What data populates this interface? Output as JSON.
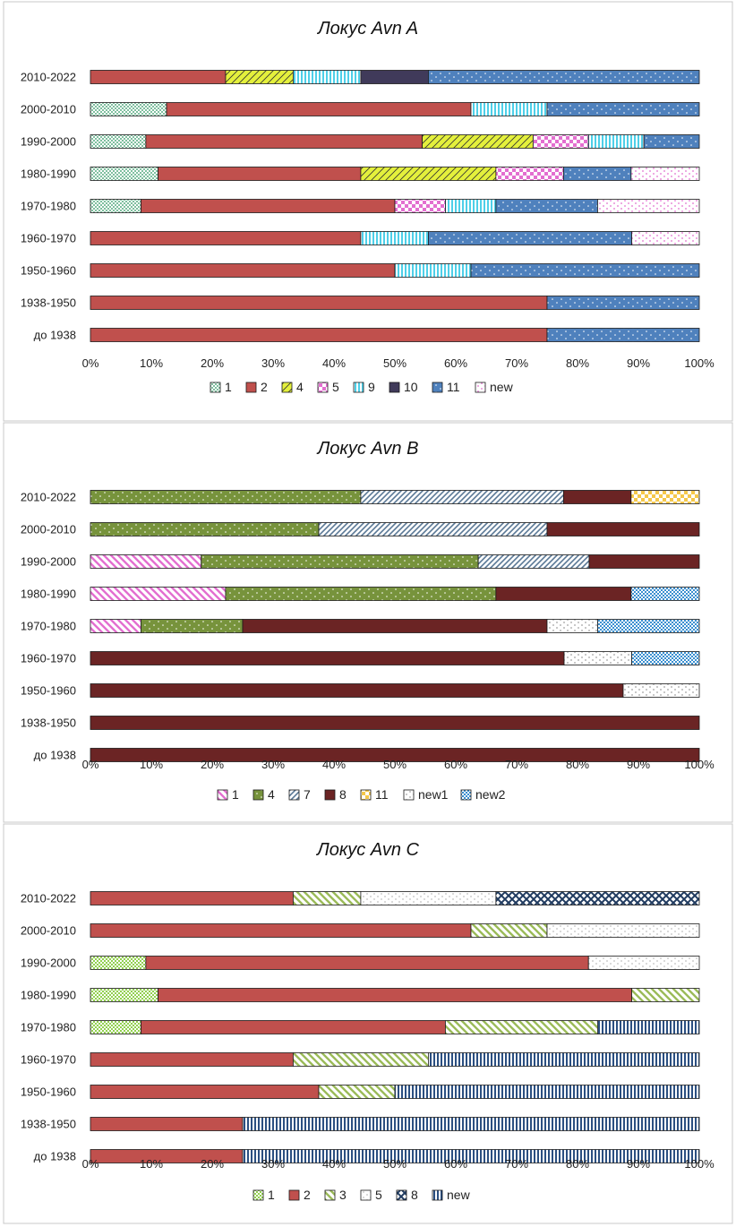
{
  "chart_data": [
    {
      "type": "bar",
      "orientation": "horizontal",
      "stacked": "percent",
      "title": "Локус Avn A",
      "categories": [
        "2010-2022",
        "2000-2010",
        "1990-2000",
        "1980-1990",
        "1970-1980",
        "1960-1970",
        "1950-1960",
        "1938-1950",
        "до 1938"
      ],
      "xlim": [
        0,
        100
      ],
      "xticks": [
        "0%",
        "10%",
        "20%",
        "30%",
        "40%",
        "50%",
        "60%",
        "70%",
        "80%",
        "90%",
        "100%"
      ],
      "legend_position": "bottom",
      "series": [
        {
          "name": "1",
          "color": "#7fbf9f",
          "pattern": "dots-dense",
          "values": [
            0,
            12.5,
            9.1,
            11.1,
            8.3,
            0,
            0,
            0,
            0
          ]
        },
        {
          "name": "2",
          "color": "#c0504d",
          "pattern": "solid",
          "values": [
            22.2,
            50,
            45.4,
            33.3,
            41.7,
            44.4,
            50,
            75,
            75
          ]
        },
        {
          "name": "4",
          "color": "#e4f03c",
          "pattern": "crosshatch",
          "values": [
            11.1,
            0,
            18.2,
            22.2,
            0,
            0,
            0,
            0,
            0
          ]
        },
        {
          "name": "5",
          "color": "#e36fd0",
          "pattern": "checker",
          "values": [
            0,
            0,
            9.1,
            11.1,
            8.3,
            0,
            0,
            0,
            0
          ]
        },
        {
          "name": "9",
          "color": "#4ecfe8",
          "pattern": "vlines",
          "values": [
            11.1,
            12.5,
            9.1,
            0,
            8.3,
            11.1,
            12.5,
            0,
            0
          ]
        },
        {
          "name": "10",
          "color": "#403a5a",
          "pattern": "solid",
          "values": [
            11.1,
            0,
            0,
            0,
            0,
            0,
            0,
            0,
            0
          ]
        },
        {
          "name": "11",
          "color": "#4f81bd",
          "pattern": "dots",
          "values": [
            44.5,
            25,
            9.1,
            11.1,
            16.7,
            33.4,
            37.5,
            25,
            25
          ]
        },
        {
          "name": "new",
          "color": "#e36fd0",
          "pattern": "dots-light",
          "values": [
            0,
            0,
            0,
            11.2,
            16.7,
            11.1,
            0,
            0,
            0
          ]
        }
      ]
    },
    {
      "type": "bar",
      "orientation": "horizontal",
      "stacked": "percent",
      "title": "Локус Avn B",
      "categories": [
        "2010-2022",
        "2000-2010",
        "1990-2000",
        "1980-1990",
        "1970-1980",
        "1960-1970",
        "1950-1960",
        "1938-1950",
        "до 1938"
      ],
      "xlim": [
        0,
        100
      ],
      "xticks": [
        "0%",
        "10%",
        "20%",
        "30%",
        "40%",
        "50%",
        "60%",
        "70%",
        "80%",
        "90%",
        "100%"
      ],
      "legend_position": "bottom",
      "series": [
        {
          "name": "1",
          "color": "#e36fd0",
          "pattern": "diag-wide",
          "values": [
            0,
            0,
            18.2,
            22.2,
            8.3,
            0,
            0,
            0,
            0
          ]
        },
        {
          "name": "4",
          "color": "#77933c",
          "pattern": "dots",
          "values": [
            44.4,
            37.5,
            45.5,
            44.4,
            16.7,
            0,
            0,
            0,
            0
          ]
        },
        {
          "name": "7",
          "color": "#5a7896",
          "pattern": "diag",
          "values": [
            33.3,
            37.5,
            18.2,
            0,
            0,
            0,
            0,
            0,
            0
          ]
        },
        {
          "name": "8",
          "color": "#6b2424",
          "pattern": "solid",
          "values": [
            11.1,
            25,
            18.1,
            22.2,
            50,
            77.8,
            87.5,
            100,
            100
          ]
        },
        {
          "name": "11",
          "color": "#f5c84a",
          "pattern": "checker",
          "values": [
            11.2,
            0,
            0,
            0,
            0,
            0,
            0,
            0,
            0
          ]
        },
        {
          "name": "new1",
          "color": "#a0a0a0",
          "pattern": "dots-light",
          "values": [
            0,
            0,
            0,
            0,
            8.3,
            11.1,
            12.5,
            0,
            0
          ]
        },
        {
          "name": "new2",
          "color": "#3a8fd0",
          "pattern": "dots-dense",
          "values": [
            0,
            0,
            0,
            11.2,
            16.7,
            11.1,
            0,
            0,
            0
          ]
        }
      ]
    },
    {
      "type": "bar",
      "orientation": "horizontal",
      "stacked": "percent",
      "title": "Локус Avn C",
      "categories": [
        "2010-2022",
        "2000-2010",
        "1990-2000",
        "1980-1990",
        "1970-1980",
        "1960-1970",
        "1950-1960",
        "1938-1950",
        "до 1938"
      ],
      "xlim": [
        0,
        100
      ],
      "xticks": [
        "0%",
        "10%",
        "20%",
        "30%",
        "40%",
        "50%",
        "60%",
        "70%",
        "80%",
        "90%",
        "100%"
      ],
      "legend_position": "bottom",
      "series": [
        {
          "name": "1",
          "color": "#92d050",
          "pattern": "dots-dense",
          "values": [
            0,
            0,
            9.1,
            11.1,
            8.3,
            0,
            0,
            0,
            0
          ]
        },
        {
          "name": "2",
          "color": "#c0504d",
          "pattern": "solid",
          "values": [
            33.3,
            62.5,
            72.7,
            77.8,
            50,
            33.3,
            37.5,
            25,
            25
          ]
        },
        {
          "name": "3",
          "color": "#9bbb59",
          "pattern": "diag-wide",
          "values": [
            11.1,
            12.5,
            0,
            11.1,
            25,
            22.2,
            12.5,
            0,
            0
          ]
        },
        {
          "name": "5",
          "color": "#bfbfbf",
          "pattern": "dots-light",
          "values": [
            22.2,
            25,
            18.2,
            0,
            0,
            0,
            0,
            0,
            0
          ]
        },
        {
          "name": "8",
          "color": "#1f3a5f",
          "pattern": "xgrid",
          "values": [
            33.4,
            0,
            0,
            0,
            0,
            0,
            0,
            0,
            0
          ]
        },
        {
          "name": "new",
          "color": "#2b4f81",
          "pattern": "vlines-dark",
          "values": [
            0,
            0,
            0,
            0,
            16.7,
            44.5,
            50,
            75,
            75
          ]
        }
      ]
    }
  ]
}
